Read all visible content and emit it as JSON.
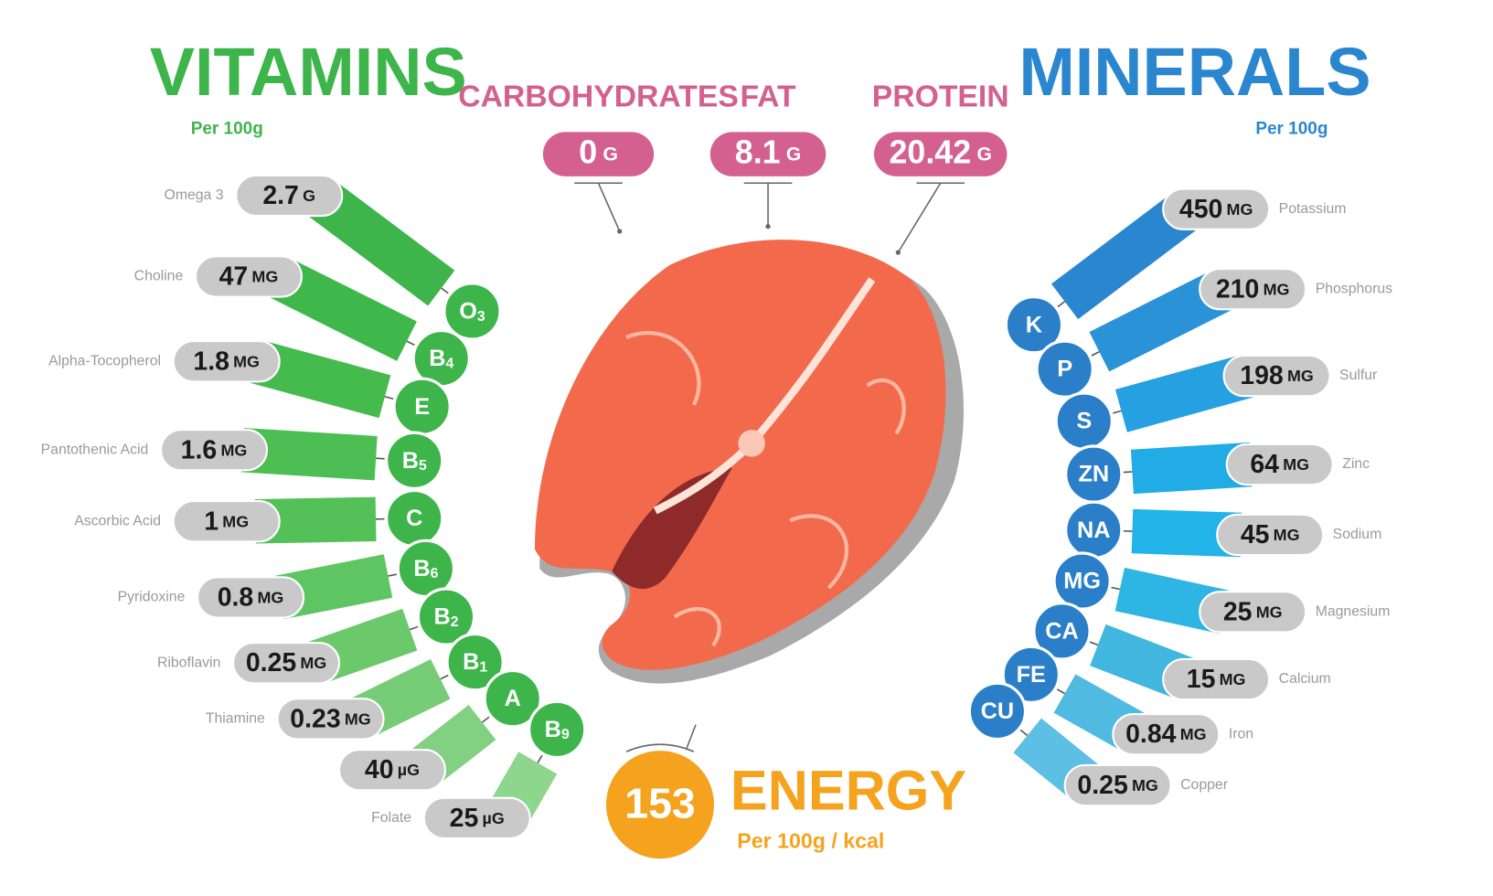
{
  "vitamins": {
    "title": "VITAMINS",
    "subtitle": "Per 100g",
    "items": [
      {
        "name": "Omega 3",
        "value": "2.7",
        "unit": "G",
        "symbol": "O",
        "sub": "3"
      },
      {
        "name": "Choline",
        "value": "47",
        "unit": "MG",
        "symbol": "B",
        "sub": "4"
      },
      {
        "name": "Alpha-Tocopherol",
        "value": "1.8",
        "unit": "MG",
        "symbol": "E"
      },
      {
        "name": "Pantothenic Acid",
        "value": "1.6",
        "unit": "MG",
        "symbol": "B",
        "sub": "5"
      },
      {
        "name": "Ascorbic Acid",
        "value": "1",
        "unit": "MG",
        "symbol": "C"
      },
      {
        "name": "Pyridoxine",
        "value": "0.8",
        "unit": "MG",
        "symbol": "B",
        "sub": "6"
      },
      {
        "name": "Riboflavin",
        "value": "0.25",
        "unit": "MG",
        "symbol": "B",
        "sub": "2"
      },
      {
        "name": "Thiamine",
        "value": "0.23",
        "unit": "MG",
        "symbol": "B",
        "sub": "1"
      },
      {
        "value": "40",
        "unit": "µG",
        "symbol": "A"
      },
      {
        "name": "Folate",
        "value": "25",
        "unit": "µG",
        "symbol": "B",
        "sub": "9"
      }
    ]
  },
  "minerals": {
    "title": "MINERALS",
    "subtitle": "Per 100g",
    "items": [
      {
        "name": "Potassium",
        "value": "450",
        "unit": "MG",
        "symbol": "K"
      },
      {
        "name": "Phosphorus",
        "value": "210",
        "unit": "MG",
        "symbol": "P"
      },
      {
        "name": "Sulfur",
        "value": "198",
        "unit": "MG",
        "symbol": "S"
      },
      {
        "name": "Zinc",
        "value": "64",
        "unit": "MG",
        "symbol": "ZN"
      },
      {
        "name": "Sodium",
        "value": "45",
        "unit": "MG",
        "symbol": "NA"
      },
      {
        "name": "Magnesium",
        "value": "25",
        "unit": "MG",
        "symbol": "MG"
      },
      {
        "name": "Calcium",
        "value": "15",
        "unit": "MG",
        "symbol": "CA"
      },
      {
        "name": "Iron",
        "value": "0.84",
        "unit": "MG",
        "symbol": "FE"
      },
      {
        "name": "Copper",
        "value": "0.25",
        "unit": "MG",
        "symbol": "CU"
      }
    ]
  },
  "macros": [
    {
      "name": "CARBOHYDRATES",
      "value": "0",
      "unit": "G"
    },
    {
      "name": "FAT",
      "value": "8.1",
      "unit": "G"
    },
    {
      "name": "PROTEIN",
      "value": "20.42",
      "unit": "G"
    }
  ],
  "energy": {
    "value": "153",
    "label": "ENERGY",
    "subtitle": "Per 100g / kcal"
  }
}
